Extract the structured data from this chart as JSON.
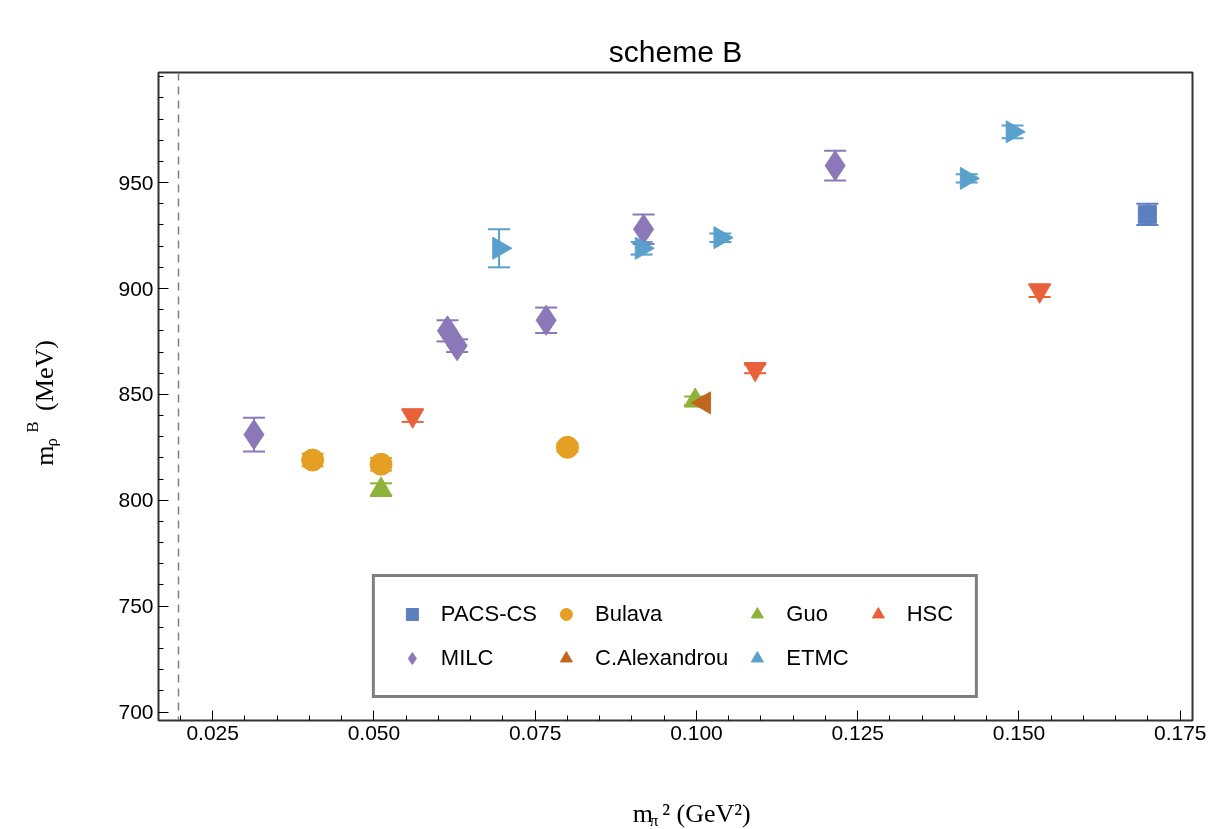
{
  "chart_data": {
    "type": "scatter",
    "title": "scheme B",
    "xlabel": "m$_{π}$² (GeV²)",
    "ylabel": "m$_{ρ}$$^{B}$ (MeV)",
    "xlim": [
      0.0166,
      0.1769
    ],
    "ylim": [
      696,
      1002
    ],
    "xticks": [
      0.025,
      {
        "value": 0.05,
        "label": "0.050"
      },
      0.075,
      {
        "value": 0.1,
        "label": "0.100"
      },
      0.125,
      {
        "value": 0.15,
        "label": "0.150"
      },
      0.175
    ],
    "yticks": [
      700,
      750,
      800,
      850,
      900,
      950
    ],
    "grid": false,
    "legend": "bottom",
    "ref_lines": [
      {
        "axis": "x",
        "value": 0.0197,
        "line_style": "dashed",
        "color": "#808080"
      }
    ],
    "series": [
      {
        "name": "PACS-CS",
        "color": "#5b7fbf",
        "marker": "square",
        "x": [
          0.1699
        ],
        "values": [
          935
        ],
        "errors": [
          5
        ]
      },
      {
        "name": "Bulava",
        "color": "#e5a024",
        "marker": "circle",
        "x": [
          0.0405,
          0.0511,
          0.08
        ],
        "values": [
          819,
          817,
          825
        ],
        "errors": [
          3,
          3,
          2
        ]
      },
      {
        "name": "Guo",
        "color": "#8db33a",
        "marker": "triangle",
        "x": [
          0.0511,
          0.0998
        ],
        "values": [
          805,
          847
        ],
        "errors": [
          3,
          2
        ]
      },
      {
        "name": "HSC",
        "color": "#e8613a",
        "marker": "triangle",
        "x": [
          0.056,
          0.1091,
          0.1532
        ],
        "values": [
          840,
          862,
          899
        ],
        "errors": [
          3,
          2,
          3
        ]
      },
      {
        "name": "MILC",
        "color": "#8b78b8",
        "marker": "diamond",
        "x": [
          0.0314,
          0.0614,
          0.0629,
          0.0767,
          0.0918,
          0.1215
        ],
        "values": [
          831,
          880,
          873,
          885,
          928,
          958
        ],
        "errors": [
          8,
          5,
          3,
          6,
          7,
          7
        ]
      },
      {
        "name": "C.Alexandrou",
        "color": "#c0661e",
        "marker": "triangle",
        "x": [
          0.1012
        ],
        "values": [
          846
        ]
      },
      {
        "name": "ETMC",
        "color": "#5aa0cc",
        "marker": "triangle",
        "x": [
          0.0694,
          0.0915,
          0.1037,
          0.1419,
          0.149
        ],
        "values": [
          919,
          919,
          924,
          952,
          974
        ],
        "errors": [
          9,
          3,
          2,
          2,
          3
        ]
      }
    ]
  }
}
